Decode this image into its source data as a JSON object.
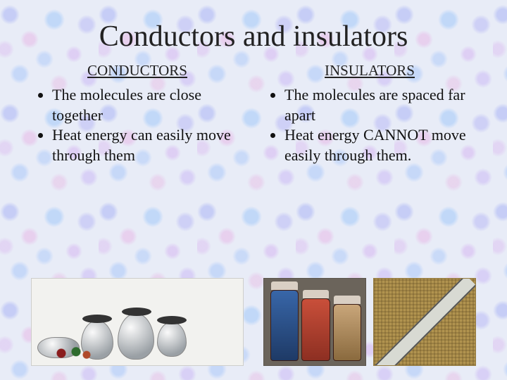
{
  "title": "Conductors and insulators",
  "title_fontsize": 42,
  "title_font_family": "cursive",
  "body_fontsize": 22,
  "subheading_fontsize": 21,
  "text_color": "#111111",
  "background_base_color": "#e8ecf7",
  "background_speckle_colors": [
    "#aab4f5",
    "#e6b4e6",
    "#a0c8fa",
    "#d2aaf0"
  ],
  "left": {
    "heading": "CONDUCTORS",
    "bullets": [
      "The molecules are close together",
      "Heat energy can easily move through them"
    ],
    "image": {
      "semantic": "cookware-photo",
      "description": "assorted metal pots and pans with lids and vegetables",
      "dominant_colors": [
        "#9aa0a5",
        "#fafafa",
        "#333333",
        "#8a1d1d",
        "#2e6b2e"
      ]
    }
  },
  "right": {
    "heading": "INSULATORS",
    "bullets": [
      "The molecules are spaced far apart",
      "Heat energy CANNOT move easily through them."
    ],
    "images": [
      {
        "semantic": "thermos-photo",
        "description": "three vacuum flasks / thermoses",
        "dominant_colors": [
          "#6b645b",
          "#3866a8",
          "#c94f3a",
          "#c9a67a",
          "#d9cfc4"
        ]
      },
      {
        "semantic": "woven-cloth-photo",
        "description": "burlap-like woven square with pale diagonal stripe",
        "dominant_colors": [
          "#b1934f",
          "#d8dad3",
          "#555555"
        ]
      }
    ]
  }
}
